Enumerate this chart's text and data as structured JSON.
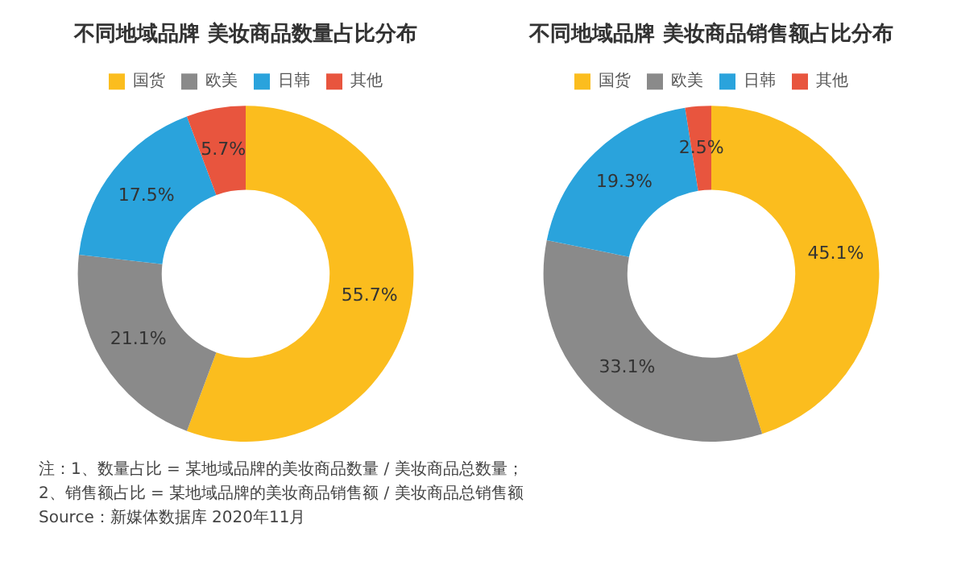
{
  "chart_data": [
    {
      "type": "donut",
      "title": "不同地域品牌 美妆商品数量占比分布",
      "categories": [
        "国货",
        "欧美",
        "日韩",
        "其他"
      ],
      "values": [
        55.7,
        21.1,
        17.5,
        5.7
      ],
      "colors": [
        "#fbbd1e",
        "#8a8a8a",
        "#2aa3dc",
        "#e8553e"
      ],
      "value_labels": [
        "55.7%",
        "21.1%",
        "17.5%",
        "5.7%"
      ],
      "legend": "top",
      "annotations": [
        "注：1、数量占比 = 某地域品牌的美妆商品数量 / 美妆商品总数量；",
        "2、销售额占比 = 某地域品牌的美妆商品销售额 / 美妆商品总销售额",
        "Source：新媒体数据库 2020年11月"
      ]
    },
    {
      "type": "donut",
      "title": "不同地域品牌 美妆商品销售额占比分布",
      "categories": [
        "国货",
        "欧美",
        "日韩",
        "其他"
      ],
      "values": [
        45.1,
        33.1,
        19.3,
        2.5
      ],
      "colors": [
        "#fbbd1e",
        "#8a8a8a",
        "#2aa3dc",
        "#e8553e"
      ],
      "value_labels": [
        "45.1%",
        "33.1%",
        "19.3%",
        "2.5%"
      ],
      "legend": "top"
    }
  ]
}
